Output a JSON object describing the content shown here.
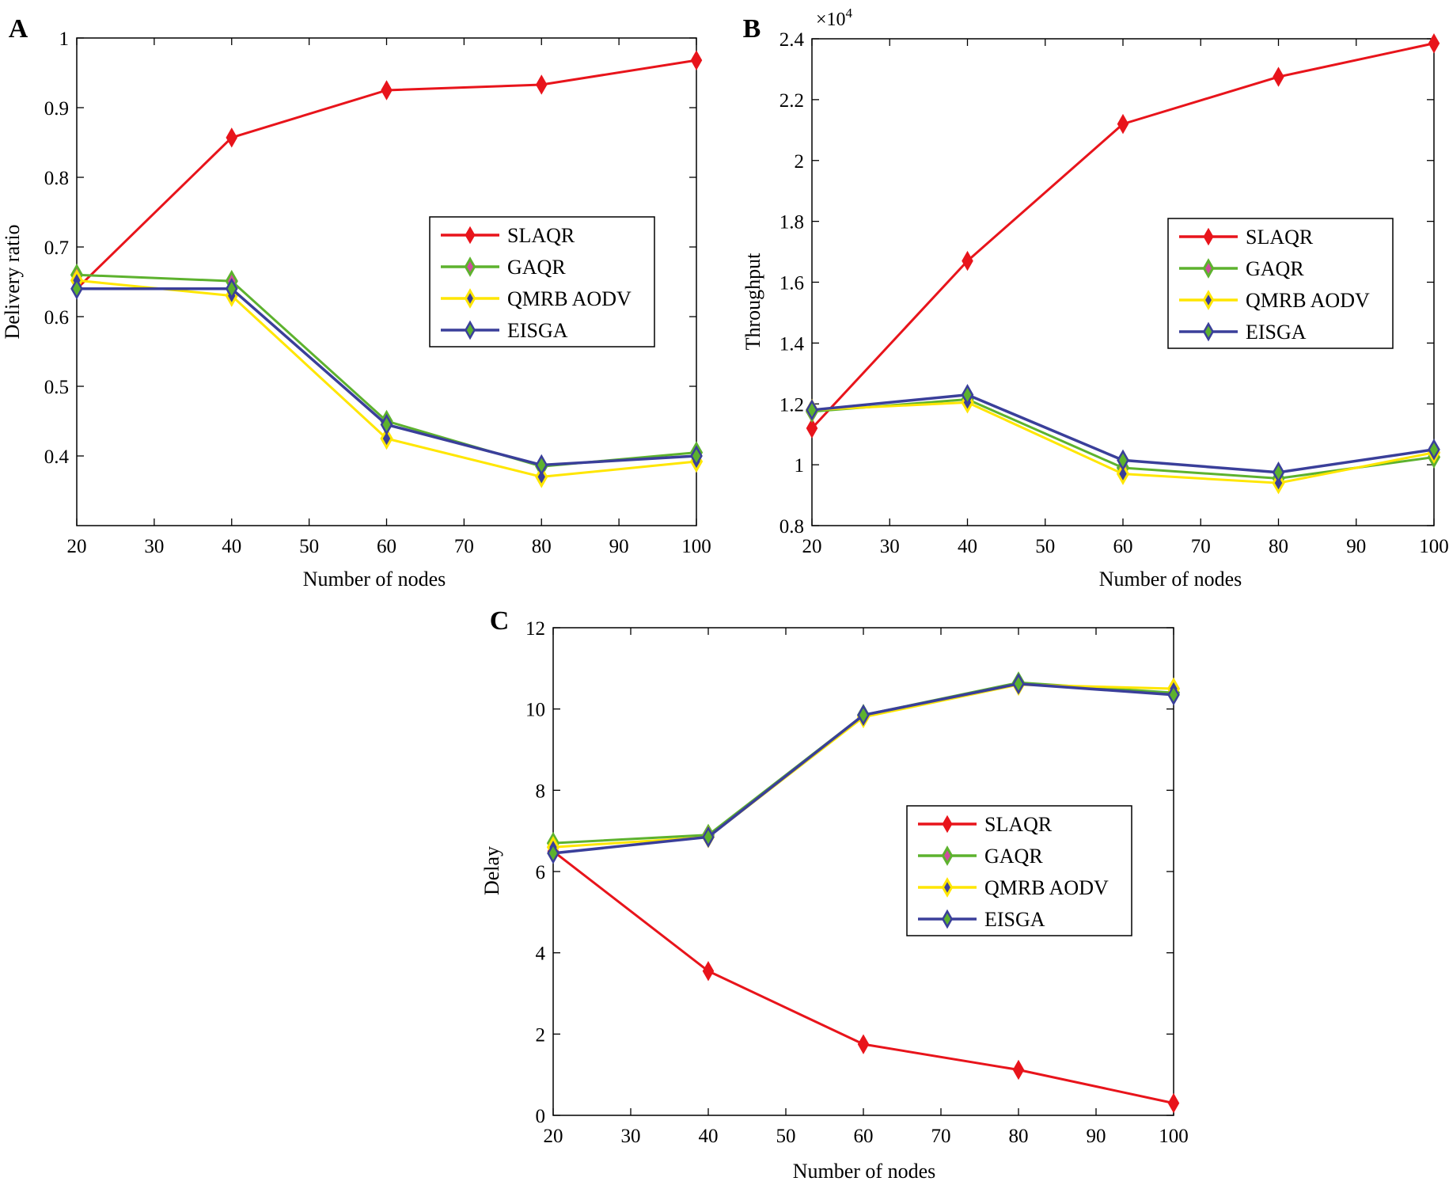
{
  "colors": {
    "SLAQR": "#e8141b",
    "GAQR": "#5db22e",
    "QMRB AODV": "#ffe600",
    "EISGA": "#3a3f9a",
    "marker_center_GAQR": "#d04aa0",
    "marker_center_QMRB": "#3a3f9a"
  },
  "chart_data": [
    {
      "type": "line",
      "panel": "A",
      "xlabel": "Number of nodes",
      "ylabel": "Delivery ratio",
      "x": [
        20,
        40,
        60,
        80,
        100
      ],
      "xlim": [
        20,
        100
      ],
      "ylim": [
        0.3,
        1
      ],
      "xticks": [
        20,
        30,
        40,
        50,
        60,
        70,
        80,
        90,
        100
      ],
      "yticks": [
        0.4,
        0.5,
        0.6,
        0.7,
        0.8,
        0.9,
        1
      ],
      "ytick_labels": [
        "0.4",
        "0.5",
        "0.6",
        "0.7",
        "0.8",
        "0.9",
        "1"
      ],
      "grid": false,
      "legend_position": "center-right",
      "series": [
        {
          "name": "SLAQR",
          "values": [
            0.64,
            0.857,
            0.925,
            0.933,
            0.968
          ]
        },
        {
          "name": "GAQR",
          "values": [
            0.66,
            0.651,
            0.45,
            0.385,
            0.405
          ]
        },
        {
          "name": "QMRB AODV",
          "values": [
            0.652,
            0.63,
            0.425,
            0.37,
            0.392
          ]
        },
        {
          "name": "EISGA",
          "values": [
            0.64,
            0.64,
            0.445,
            0.387,
            0.4
          ]
        }
      ]
    },
    {
      "type": "line",
      "panel": "B",
      "xlabel": "Number of nodes",
      "ylabel": "Throughput",
      "y_multiplier": "×10",
      "y_multiplier_exp": "4",
      "x": [
        20,
        40,
        60,
        80,
        100
      ],
      "xlim": [
        20,
        100
      ],
      "ylim": [
        0.8,
        2.4
      ],
      "xticks": [
        20,
        30,
        40,
        50,
        60,
        70,
        80,
        90,
        100
      ],
      "yticks": [
        0.8,
        1,
        1.2,
        1.4,
        1.6,
        1.8,
        2,
        2.2,
        2.4
      ],
      "ytick_labels": [
        "0.8",
        "1",
        "1.2",
        "1.4",
        "1.6",
        "1.8",
        "2",
        "2.2",
        "2.4"
      ],
      "grid": false,
      "legend_position": "center-right",
      "series": [
        {
          "name": "SLAQR",
          "values": [
            1.12,
            1.67,
            2.12,
            2.275,
            2.385
          ]
        },
        {
          "name": "GAQR",
          "values": [
            1.175,
            1.215,
            0.99,
            0.955,
            1.025
          ]
        },
        {
          "name": "QMRB AODV",
          "values": [
            1.18,
            1.205,
            0.97,
            0.94,
            1.04
          ]
        },
        {
          "name": "EISGA",
          "values": [
            1.18,
            1.23,
            1.015,
            0.975,
            1.05
          ]
        }
      ]
    },
    {
      "type": "line",
      "panel": "C",
      "xlabel": "Number of nodes",
      "ylabel": "Delay",
      "x": [
        20,
        40,
        60,
        80,
        100
      ],
      "xlim": [
        20,
        100
      ],
      "ylim": [
        0,
        12
      ],
      "xticks": [
        20,
        30,
        40,
        50,
        60,
        70,
        80,
        90,
        100
      ],
      "yticks": [
        0,
        2,
        4,
        6,
        8,
        10,
        12
      ],
      "ytick_labels": [
        "0",
        "2",
        "4",
        "6",
        "8",
        "10",
        "12"
      ],
      "grid": false,
      "legend_position": "center-right",
      "series": [
        {
          "name": "SLAQR",
          "values": [
            6.5,
            3.55,
            1.75,
            1.12,
            0.3
          ]
        },
        {
          "name": "GAQR",
          "values": [
            6.7,
            6.9,
            9.85,
            10.65,
            10.4
          ]
        },
        {
          "name": "QMRB AODV",
          "values": [
            6.6,
            6.85,
            9.8,
            10.6,
            10.5
          ]
        },
        {
          "name": "EISGA",
          "values": [
            6.45,
            6.85,
            9.85,
            10.62,
            10.35
          ]
        }
      ]
    }
  ]
}
